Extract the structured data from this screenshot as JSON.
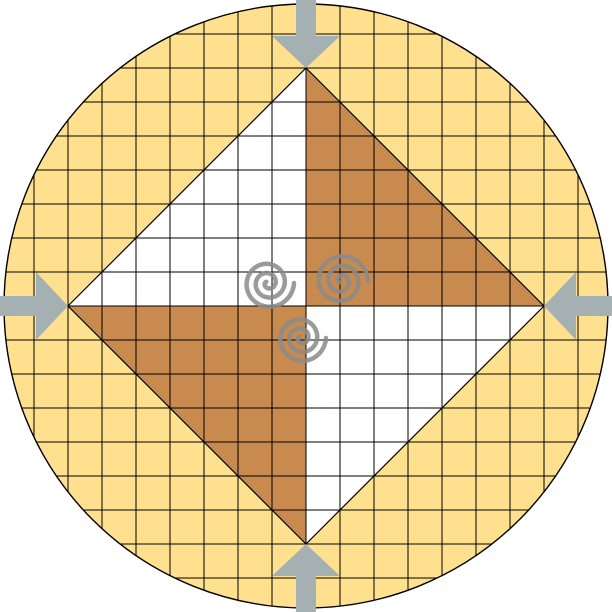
{
  "board": {
    "grid_cells": 18,
    "colors": {
      "background_fill": "#ffe08f",
      "light_fill": "#ffffff",
      "dark_fill": "#c98a4f",
      "grid_line": "#000000",
      "arrow_fill": "#a4b0b1",
      "spiral_stroke": "#8a8a8a"
    },
    "icons": [
      "arrow-down-icon",
      "arrow-up-icon",
      "arrow-right-icon",
      "arrow-left-icon",
      "triple-spiral-icon"
    ]
  }
}
